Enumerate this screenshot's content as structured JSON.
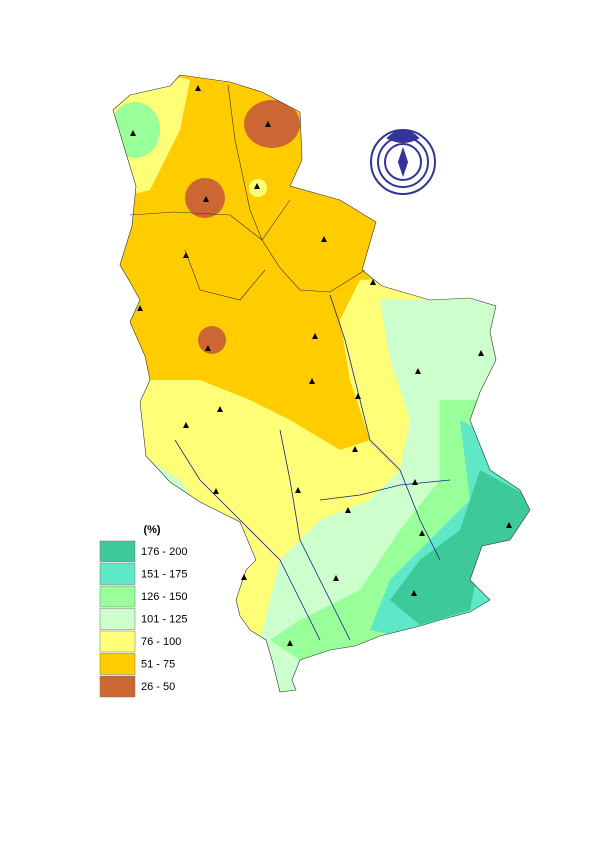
{
  "legend": {
    "title": "(%)",
    "items": [
      {
        "label": "176 - 200",
        "color": "#3ec99a"
      },
      {
        "label": "151 - 175",
        "color": "#5fe8c8"
      },
      {
        "label": "126 - 150",
        "color": "#99ff99"
      },
      {
        "label": "101 - 125",
        "color": "#ccffcc"
      },
      {
        "label": "76 - 100",
        "color": "#ffff77"
      },
      {
        "label": "51 - 75",
        "color": "#ffcc00"
      },
      {
        "label": "26 - 50",
        "color": "#cc6633"
      }
    ]
  }
}
